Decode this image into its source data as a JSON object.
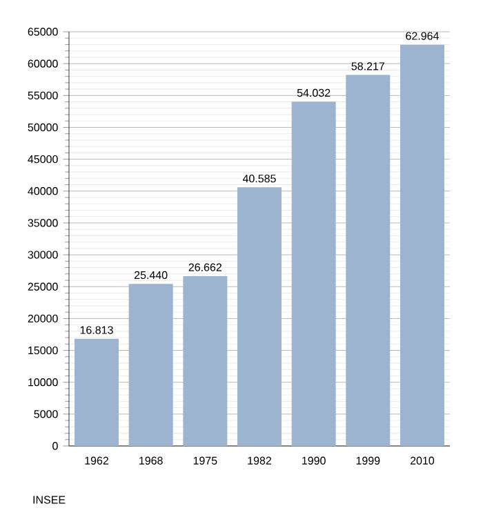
{
  "chart_data": {
    "type": "bar",
    "categories": [
      "1962",
      "1968",
      "1975",
      "1982",
      "1990",
      "1999",
      "2010"
    ],
    "values": [
      16813,
      25440,
      26662,
      40585,
      54032,
      58217,
      62964
    ],
    "value_labels": [
      "16.813",
      "25.440",
      "26.662",
      "40.585",
      "54.032",
      "58.217",
      "62.964"
    ],
    "color": "#9cb4d0",
    "ylim": [
      0,
      65000
    ],
    "yticks": [
      0,
      5000,
      10000,
      15000,
      20000,
      25000,
      30000,
      35000,
      40000,
      45000,
      50000,
      55000,
      60000,
      65000
    ],
    "grid": "y",
    "annotations": [
      "INSEE"
    ]
  }
}
